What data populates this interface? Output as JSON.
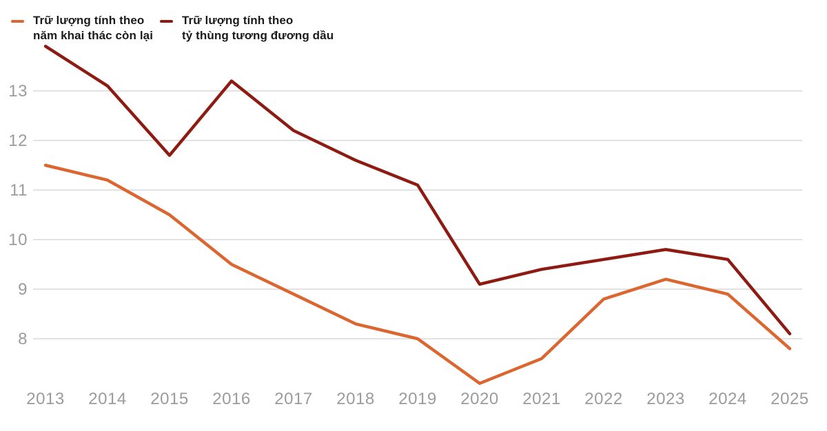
{
  "legend": {
    "items": [
      {
        "lines": [
          "Trữ lượng tính theo",
          "năm khai thác còn lại"
        ],
        "color": "#DB6630"
      },
      {
        "lines": [
          "Trữ lượng tính theo",
          "tỷ thùng tương đương dầu"
        ],
        "color": "#8E1B12"
      }
    ]
  },
  "chart_data": {
    "type": "line",
    "x": [
      2013,
      2014,
      2015,
      2016,
      2017,
      2018,
      2019,
      2020,
      2021,
      2022,
      2023,
      2024,
      2025
    ],
    "series": [
      {
        "name": "Trữ lượng tính theo năm khai thác còn lại",
        "color": "#DB6630",
        "values": [
          11.5,
          11.2,
          10.5,
          9.5,
          8.9,
          8.3,
          8.0,
          7.1,
          7.6,
          8.8,
          9.2,
          8.9,
          7.8
        ]
      },
      {
        "name": "Trữ lượng tính theo tỷ thùng tương đương dầu",
        "color": "#8E1B12",
        "values": [
          13.9,
          13.1,
          11.7,
          13.2,
          12.2,
          11.6,
          11.1,
          9.1,
          9.4,
          9.6,
          9.8,
          9.6,
          8.1
        ]
      }
    ],
    "title": "",
    "xlabel": "",
    "ylabel": "",
    "yticks": [
      13,
      12,
      11,
      10,
      9,
      8
    ],
    "ylim": [
      7,
      14
    ],
    "grid": true,
    "gridline_color": "#d9d9d9",
    "tick_label_color": "#9b9b9b",
    "legend_position": "top-left"
  }
}
